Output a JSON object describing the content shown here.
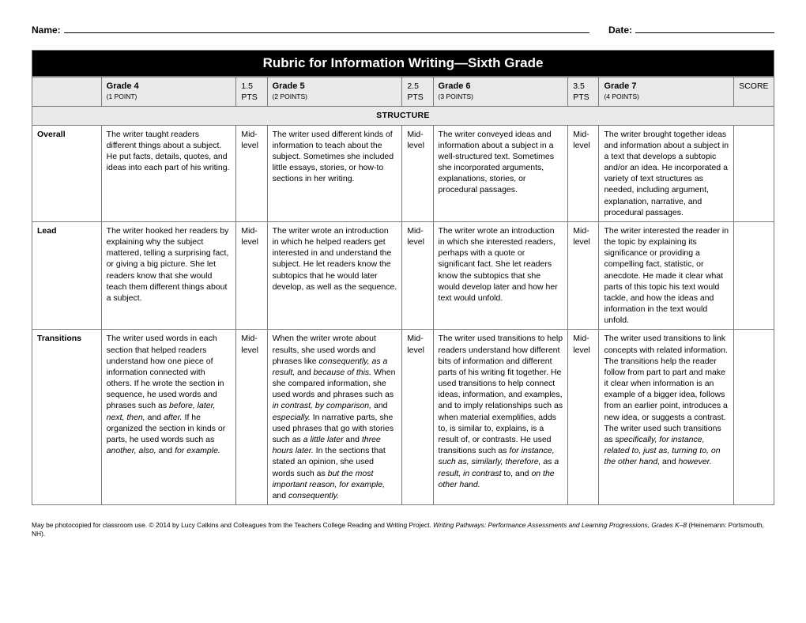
{
  "header": {
    "name_label": "Name:",
    "date_label": "Date:"
  },
  "title": "Rubric for Information Writing—Sixth Grade",
  "grades": {
    "g4": {
      "title": "Grade 4",
      "pts": "(1 POINT)"
    },
    "p15": "1.5 PTS",
    "g5": {
      "title": "Grade 5",
      "pts": "(2 POINTS)"
    },
    "p25": "2.5 PTS",
    "g6": {
      "title": "Grade 6",
      "pts": "(3 POINTS)"
    },
    "p35": "3.5 PTS",
    "g7": {
      "title": "Grade 7",
      "pts": "(4 POINTS)"
    },
    "score": "SCORE"
  },
  "category": "STRUCTURE",
  "midlevel": "Mid-\nlevel",
  "rows": {
    "overall": {
      "label": "Overall",
      "g4": "The writer taught readers different things about a subject. He put facts, details, quotes, and ideas into each part of his writing.",
      "g5": "The writer used different kinds of information to teach about the subject. Sometimes she included little essays, stories, or how-to sections in her writing.",
      "g6": "The writer conveyed ideas and information about a subject in a well-structured text. Sometimes she incorporated arguments, explanations, stories, or procedural passages.",
      "g7": "The writer brought together ideas and information about a subject in a text that develops a subtopic and/or an idea. He incorporated a variety of text structures as needed, including argument, explanation, narrative, and procedural passages."
    },
    "lead": {
      "label": "Lead",
      "g4": "The writer hooked her readers by explaining why the subject mattered, telling a surprising fact, or giving a big picture. She let readers know that she would teach them different things about a subject.",
      "g5": "The writer wrote an introduction in which he helped readers get interested in and understand the subject. He let readers know the subtopics that he would later develop, as well as the sequence.",
      "g6": "The writer wrote an introduction in which she interested readers, perhaps with a quote or significant fact. She let readers know the subtopics that she would develop later and how her text would unfold.",
      "g7": "The writer interested the reader in the topic by explaining its significance or providing a compelling fact, statistic, or anecdote. He made it clear what parts of this topic his text would tackle, and how the ideas and information in the text would unfold."
    },
    "transitions": {
      "label": "Transitions",
      "g4_html": "The writer used words in each section that helped readers understand how one piece of information connected with others. If he wrote the section in sequence, he used words and phrases such as <span class='ital'>before, later, next, then,</span> and <span class='ital'>after.</span> If he organized the section in kinds or parts, he used words such as <span class='ital'>another, also,</span> and <span class='ital'>for example.</span>",
      "g5_html": "When the writer wrote about results, she used words and phrases like <span class='ital'>consequently, as a result,</span> and <span class='ital'>because of this.</span> When she compared information, she used words and phrases such as <span class='ital'>in contrast, by comparison,</span> and <span class='ital'>especially.</span> In narrative parts, she used phrases that go with stories such as <span class='ital'>a little later</span> and <span class='ital'>three hours later.</span> In the sections that stated an opinion, she used words such as <span class='ital'>but the most important reason, for example,</span> and <span class='ital'>consequently.</span>",
      "g6_html": "The writer used transitions to help readers understand how different bits of information and different parts of his writing fit together. He used transitions to help connect ideas, information, and examples, and to imply relationships such as when material exemplifies, adds to, is similar to, explains, is a result of, or contrasts. He used transitions such as <span class='ital'>for instance, such as, similarly, therefore, as a result, in contrast</span> to, and <span class='ital'>on the other hand.</span>",
      "g7_html": "The writer used transitions to link concepts with related information. The transitions help the reader follow from part to part and make it clear when information is an example of a bigger idea, follows from an earlier point, introduces a new idea, or suggests a contrast. The writer used such transitions as <span class='ital'>specifically, for instance, related to, just as, turning to, on the other hand,</span> and <span class='ital'>however.</span>"
    }
  },
  "footer_html": "May be photocopied for classroom use. © 2014 by Lucy Calkins and Colleagues from the Teachers College Reading and Writing Project. <span class='ital'>Writing Pathways: Performance Assessments and Learning Progressions, Grades K–8</span> (Heinemann: Portsmouth, NH)."
}
